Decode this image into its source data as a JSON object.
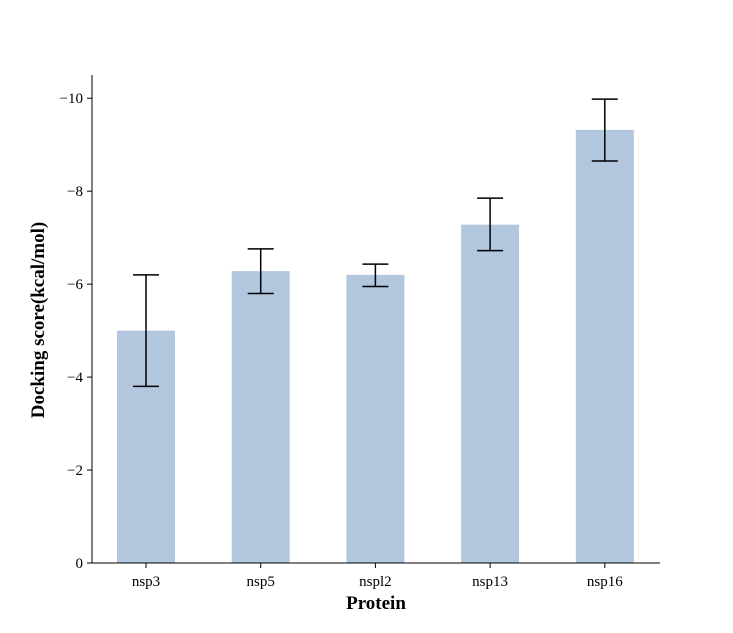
{
  "chart_data": {
    "type": "bar",
    "title": "",
    "xlabel": "Protein",
    "ylabel": "Docking score(kcal/mol)",
    "categories": [
      "nsp3",
      "nsp5",
      "nspl2",
      "nsp13",
      "nsp16"
    ],
    "values": [
      -5.0,
      -6.28,
      -6.2,
      -7.28,
      -9.32
    ],
    "error_low": [
      -3.8,
      -5.8,
      -5.95,
      -6.72,
      -8.65
    ],
    "error_high": [
      -6.2,
      -6.76,
      -6.43,
      -7.85,
      -9.98
    ],
    "ylim": [
      0,
      -10.5
    ],
    "yticks": [
      0,
      -2,
      -4,
      -6,
      -8,
      -10
    ],
    "ytick_labels": [
      "0",
      "−2",
      "−4",
      "−6",
      "−8",
      "−10"
    ],
    "grid": false,
    "colors": {
      "bar": "#b2c6de",
      "error": "#000000",
      "axis": "#000000"
    }
  }
}
